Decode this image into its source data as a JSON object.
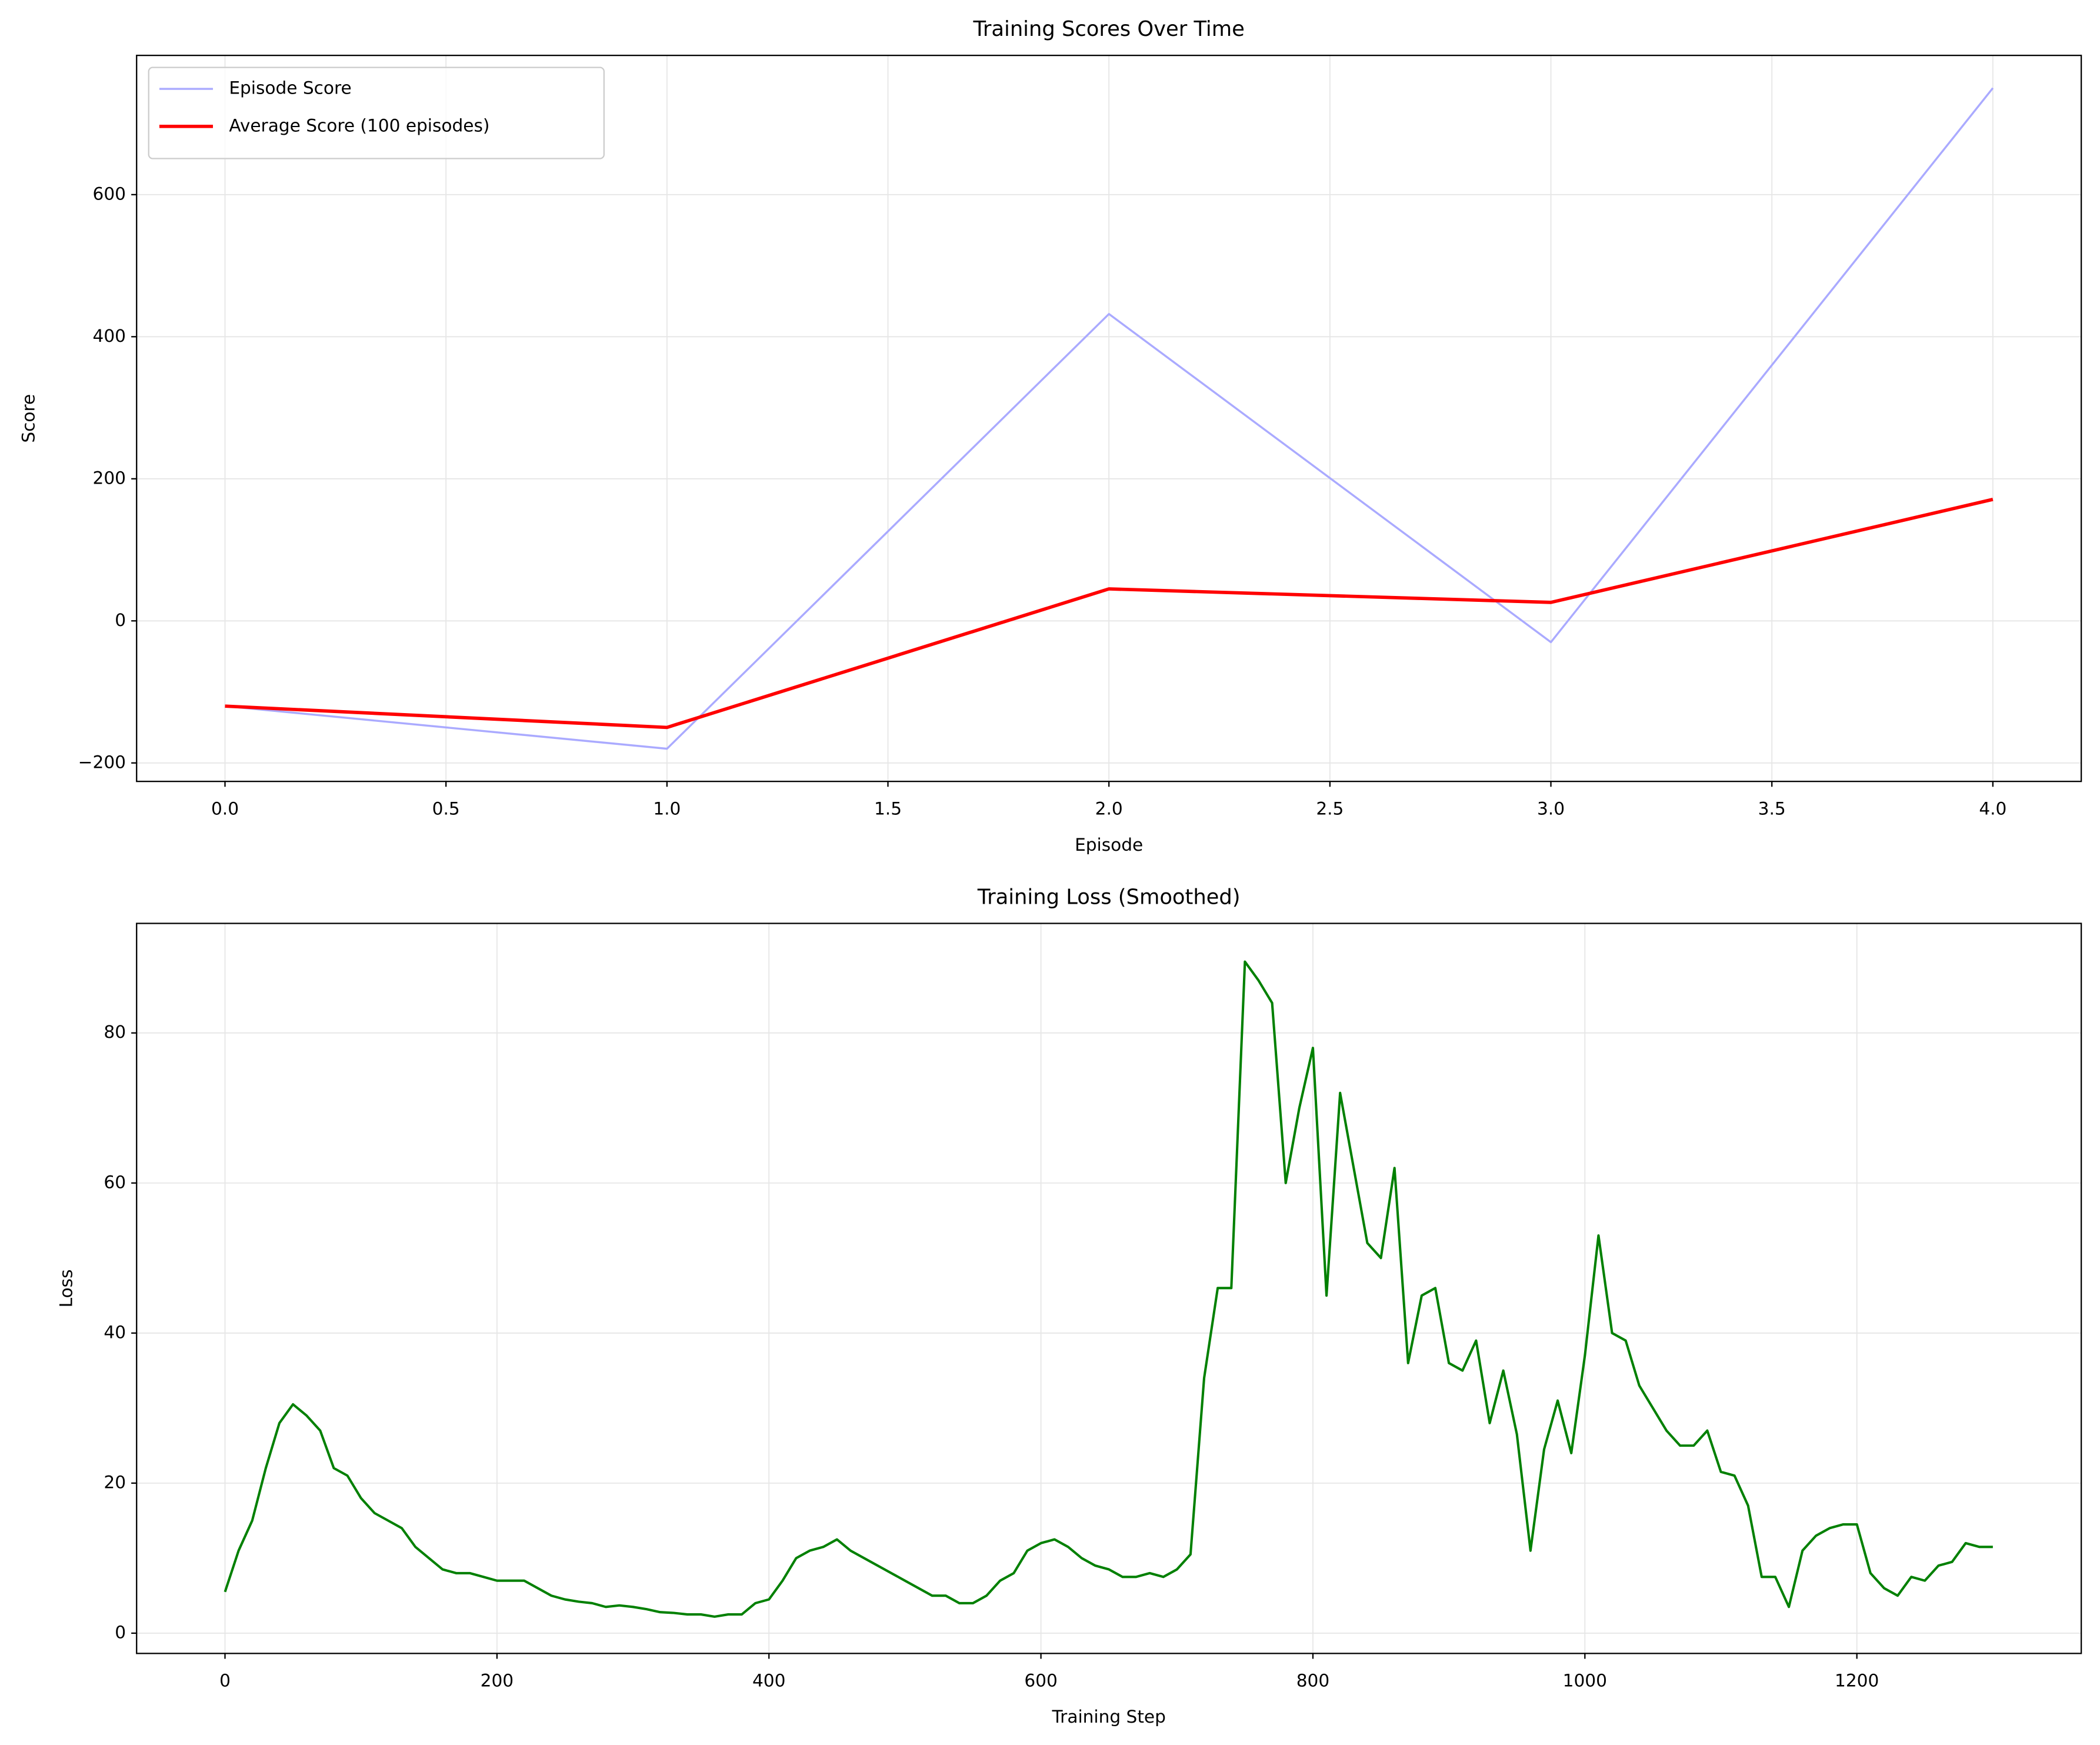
{
  "chart_data": [
    {
      "type": "line",
      "title": "Training Scores Over Time",
      "xlabel": "Episode",
      "ylabel": "Score",
      "x": [
        0,
        1,
        2,
        3,
        4
      ],
      "series": [
        {
          "name": "Episode Score",
          "color": "#aaaaff",
          "width": 1.5,
          "values": [
            -120,
            -180,
            432,
            -30,
            750
          ]
        },
        {
          "name": "Average Score (100 episodes)",
          "color": "#ff0000",
          "width": 2.5,
          "values": [
            -120,
            -150,
            45,
            26,
            171
          ]
        }
      ],
      "xlim": [
        -0.2,
        4.2
      ],
      "xticks": [
        {
          "value": 0,
          "label": "0.0"
        },
        {
          "value": 0.5,
          "label": "0.5"
        },
        {
          "value": 1,
          "label": "1.0"
        },
        {
          "value": 1.5,
          "label": "1.5"
        },
        {
          "value": 2,
          "label": "2.0"
        },
        {
          "value": 2.5,
          "label": "2.5"
        },
        {
          "value": 3,
          "label": "3.0"
        },
        {
          "value": 3.5,
          "label": "3.5"
        },
        {
          "value": 4,
          "label": "4.0"
        }
      ],
      "ylim": [
        -226,
        796
      ],
      "yticks": [
        {
          "value": -200,
          "label": "−200"
        },
        0,
        200,
        400,
        600
      ],
      "grid": true,
      "legend": "upper left"
    },
    {
      "type": "line",
      "title": "Training Loss (Smoothed)",
      "xlabel": "Training Step",
      "ylabel": "Loss",
      "x": [
        0,
        10,
        20,
        30,
        40,
        50,
        60,
        70,
        80,
        90,
        100,
        110,
        120,
        130,
        140,
        150,
        160,
        170,
        180,
        190,
        200,
        210,
        220,
        230,
        240,
        250,
        260,
        270,
        280,
        290,
        300,
        310,
        320,
        330,
        340,
        350,
        360,
        370,
        380,
        390,
        400,
        410,
        420,
        430,
        440,
        450,
        460,
        470,
        480,
        490,
        500,
        510,
        520,
        530,
        540,
        550,
        560,
        570,
        580,
        590,
        600,
        610,
        620,
        630,
        640,
        650,
        660,
        670,
        680,
        690,
        700,
        710,
        720,
        730,
        740,
        750,
        760,
        770,
        780,
        790,
        800,
        810,
        820,
        830,
        840,
        850,
        860,
        870,
        880,
        890,
        900,
        910,
        920,
        930,
        940,
        950,
        960,
        970,
        980,
        990,
        1000,
        1010,
        1020,
        1030,
        1040,
        1050,
        1060,
        1070,
        1080,
        1090,
        1100,
        1110,
        1120,
        1130,
        1140,
        1150,
        1160,
        1170,
        1180,
        1190,
        1200,
        1210,
        1220,
        1230,
        1240,
        1250,
        1260,
        1270,
        1280,
        1290,
        1300
      ],
      "series": [
        {
          "color": "#008000",
          "width": 1.8,
          "values": [
            5.5,
            11,
            15,
            22,
            28,
            30.5,
            29,
            27,
            22,
            21,
            18,
            16,
            15,
            14,
            11.5,
            10,
            8.5,
            8,
            8,
            7.5,
            7,
            7,
            7,
            6,
            5,
            4.5,
            4.2,
            4,
            3.5,
            3.7,
            3.5,
            3.2,
            2.8,
            2.7,
            2.5,
            2.5,
            2.2,
            2.5,
            2.5,
            4,
            4.5,
            7,
            10,
            11,
            11.5,
            12.5,
            11,
            10,
            9,
            8,
            7,
            6,
            5,
            5,
            4,
            4,
            5,
            7,
            8,
            11,
            12,
            12.5,
            11.5,
            10,
            9,
            8.5,
            7.5,
            7.5,
            8,
            7.5,
            8.5,
            10.5,
            34,
            46,
            46,
            89.5,
            87,
            84,
            60,
            70,
            78,
            45,
            72,
            62,
            52,
            50,
            62,
            36,
            45,
            46,
            36,
            35,
            39,
            28,
            35,
            26.5,
            11,
            24.5,
            31,
            24,
            37,
            53,
            40,
            39,
            33,
            30,
            27,
            25,
            25,
            27,
            21.5,
            21,
            17,
            7.5,
            7.5,
            3.5,
            11,
            13,
            14,
            14.5,
            14.5,
            8,
            6,
            5,
            7.5,
            7,
            9,
            9.5,
            12,
            11.5,
            11.5
          ]
        }
      ],
      "xlim": [
        -65,
        1365
      ],
      "xticks": [
        0,
        200,
        400,
        600,
        800,
        1000,
        1200
      ],
      "ylim": [
        -2.7,
        94.6
      ],
      "yticks": [
        0,
        20,
        40,
        60,
        80
      ],
      "grid": true
    }
  ]
}
